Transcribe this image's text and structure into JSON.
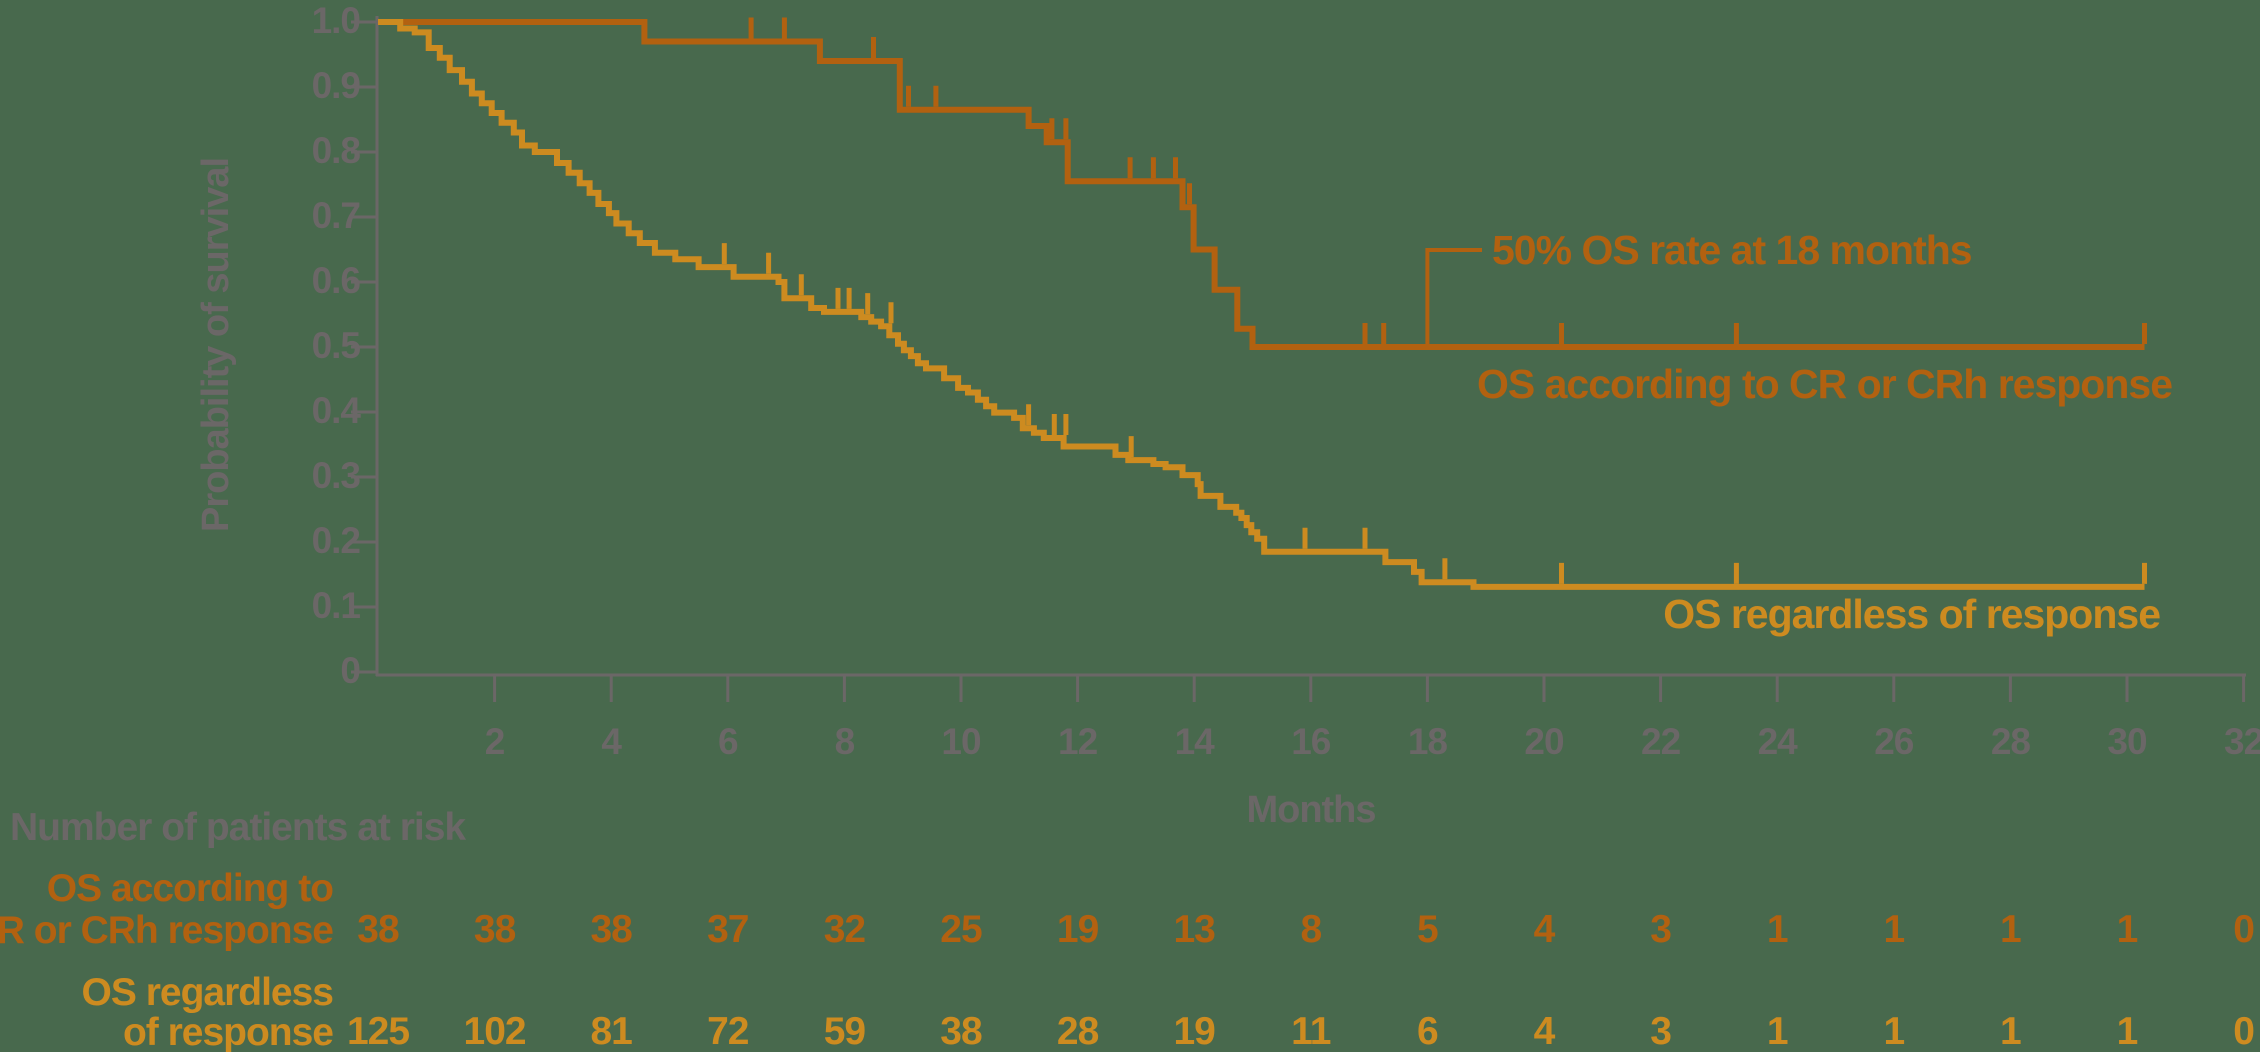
{
  "chart_data": {
    "type": "line",
    "subtype": "kaplan-meier-step",
    "title": "",
    "xlabel": "Months",
    "ylabel": "Probability of survival",
    "xlim": [
      0,
      32
    ],
    "ylim": [
      0,
      1.0
    ],
    "x_ticks": [
      2,
      4,
      6,
      8,
      10,
      12,
      14,
      16,
      18,
      20,
      22,
      24,
      26,
      28,
      30,
      32
    ],
    "y_ticks": [
      "1.0",
      "0.9",
      "0.8",
      "0.7",
      "0.6",
      "0.5",
      "0.4",
      "0.3",
      "0.2",
      "0.1",
      "0"
    ],
    "grid": false,
    "legend_position": "inline-right",
    "colors": {
      "background": "#48694d",
      "axis": "#6b6767",
      "text_grey": "#6b6767",
      "responders": "#b26110",
      "all_patients": "#cd8b20"
    },
    "annotation": {
      "text": "50% OS rate at 18 months",
      "month": 18,
      "prob": 0.5
    },
    "series": [
      {
        "name": "OS according to CR or CRh response",
        "label": "OS according to CR or CRh response",
        "color": "#b26110",
        "end_month": 30.3,
        "steps": [
          [
            0,
            1.0
          ],
          [
            4.57,
            0.97
          ],
          [
            7.58,
            0.94
          ],
          [
            8.95,
            0.865
          ],
          [
            11.16,
            0.84
          ],
          [
            11.47,
            0.815
          ],
          [
            11.83,
            0.755
          ],
          [
            13.8,
            0.715
          ],
          [
            13.99,
            0.65
          ],
          [
            14.35,
            0.588
          ],
          [
            14.74,
            0.528
          ],
          [
            15.0,
            0.5
          ]
        ],
        "censor_marks": [
          [
            6.4,
            0.97
          ],
          [
            6.97,
            0.97
          ],
          [
            8.5,
            0.94
          ],
          [
            9.1,
            0.865
          ],
          [
            9.57,
            0.865
          ],
          [
            11.56,
            0.815
          ],
          [
            11.8,
            0.815
          ],
          [
            12.9,
            0.755
          ],
          [
            13.3,
            0.755
          ],
          [
            13.68,
            0.755
          ],
          [
            13.92,
            0.715
          ],
          [
            16.93,
            0.5
          ],
          [
            17.25,
            0.5
          ],
          [
            20.3,
            0.5
          ],
          [
            23.3,
            0.5
          ],
          [
            30.3,
            0.5
          ]
        ]
      },
      {
        "name": "OS regardless of response",
        "label": "OS regardless of response",
        "color": "#cd8b20",
        "end_month": 30.3,
        "steps": [
          [
            0,
            1.0
          ],
          [
            0.38,
            0.99
          ],
          [
            0.63,
            0.984
          ],
          [
            0.87,
            0.96
          ],
          [
            1.06,
            0.945
          ],
          [
            1.23,
            0.926
          ],
          [
            1.44,
            0.908
          ],
          [
            1.61,
            0.89
          ],
          [
            1.78,
            0.875
          ],
          [
            1.95,
            0.86
          ],
          [
            2.12,
            0.845
          ],
          [
            2.33,
            0.83
          ],
          [
            2.47,
            0.81
          ],
          [
            2.69,
            0.8
          ],
          [
            3.07,
            0.783
          ],
          [
            3.27,
            0.768
          ],
          [
            3.46,
            0.752
          ],
          [
            3.63,
            0.737
          ],
          [
            3.78,
            0.72
          ],
          [
            3.96,
            0.706
          ],
          [
            4.09,
            0.69
          ],
          [
            4.3,
            0.675
          ],
          [
            4.49,
            0.66
          ],
          [
            4.75,
            0.645
          ],
          [
            5.1,
            0.635
          ],
          [
            5.5,
            0.623
          ],
          [
            6.1,
            0.608
          ],
          [
            6.87,
            0.6
          ],
          [
            6.97,
            0.575
          ],
          [
            7.43,
            0.56
          ],
          [
            7.65,
            0.554
          ],
          [
            8.29,
            0.546
          ],
          [
            8.46,
            0.539
          ],
          [
            8.63,
            0.532
          ],
          [
            8.77,
            0.518
          ],
          [
            8.92,
            0.505
          ],
          [
            9.02,
            0.495
          ],
          [
            9.14,
            0.486
          ],
          [
            9.26,
            0.475
          ],
          [
            9.4,
            0.467
          ],
          [
            9.71,
            0.452
          ],
          [
            9.95,
            0.437
          ],
          [
            10.12,
            0.43
          ],
          [
            10.29,
            0.419
          ],
          [
            10.43,
            0.409
          ],
          [
            10.57,
            0.399
          ],
          [
            10.91,
            0.391
          ],
          [
            11.06,
            0.375
          ],
          [
            11.25,
            0.368
          ],
          [
            11.42,
            0.36
          ],
          [
            11.76,
            0.347
          ],
          [
            12.65,
            0.334
          ],
          [
            12.87,
            0.326
          ],
          [
            13.3,
            0.32
          ],
          [
            13.51,
            0.315
          ],
          [
            13.8,
            0.303
          ],
          [
            14.06,
            0.289
          ],
          [
            14.11,
            0.271
          ],
          [
            14.45,
            0.254
          ],
          [
            14.72,
            0.245
          ],
          [
            14.81,
            0.237
          ],
          [
            14.9,
            0.226
          ],
          [
            14.98,
            0.215
          ],
          [
            15.08,
            0.205
          ],
          [
            15.2,
            0.185
          ],
          [
            17.28,
            0.169
          ],
          [
            17.77,
            0.154
          ],
          [
            17.9,
            0.138
          ],
          [
            18.79,
            0.131
          ]
        ],
        "censor_marks": [
          [
            5.94,
            0.623
          ],
          [
            6.7,
            0.608
          ],
          [
            7.26,
            0.575
          ],
          [
            7.89,
            0.554
          ],
          [
            8.08,
            0.554
          ],
          [
            8.4,
            0.546
          ],
          [
            8.8,
            0.532
          ],
          [
            11.16,
            0.375
          ],
          [
            11.6,
            0.36
          ],
          [
            11.8,
            0.36
          ],
          [
            12.92,
            0.326
          ],
          [
            15.9,
            0.185
          ],
          [
            16.93,
            0.185
          ],
          [
            18.3,
            0.138
          ],
          [
            20.3,
            0.131
          ],
          [
            23.3,
            0.131
          ],
          [
            30.3,
            0.131
          ]
        ]
      }
    ],
    "risk_table": {
      "title": "Number of patients at risk",
      "months": [
        0,
        2,
        4,
        6,
        8,
        10,
        12,
        14,
        16,
        18,
        20,
        22,
        24,
        26,
        28,
        30,
        32
      ],
      "rows": [
        {
          "label_lines": [
            "OS according to",
            "CR or CRh response"
          ],
          "color": "#b26110",
          "values": [
            "38",
            "38",
            "38",
            "37",
            "32",
            "25",
            "19",
            "13",
            "8",
            "5",
            "4",
            "3",
            "1",
            "1",
            "1",
            "1",
            "0"
          ]
        },
        {
          "label_lines": [
            "OS regardless",
            "of response"
          ],
          "color": "#cd8b20",
          "values": [
            "125",
            "102",
            "81",
            "72",
            "59",
            "38",
            "28",
            "19",
            "11",
            "6",
            "4",
            "3",
            "1",
            "1",
            "1",
            "1",
            "0"
          ]
        }
      ]
    }
  }
}
